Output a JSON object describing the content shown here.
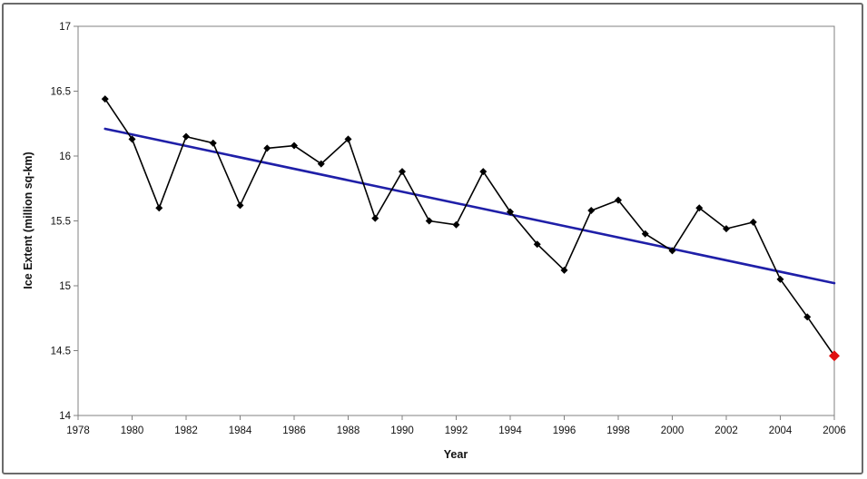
{
  "chart_data": {
    "type": "line",
    "xlabel": "Year",
    "ylabel": "Ice Extent (million sq-km)",
    "xlim": [
      1978,
      2006
    ],
    "ylim": [
      14,
      17
    ],
    "xticks": [
      1978,
      1980,
      1982,
      1984,
      1986,
      1988,
      1990,
      1992,
      1994,
      1996,
      1998,
      2000,
      2002,
      2004,
      2006
    ],
    "yticks": [
      14,
      14.5,
      15,
      15.5,
      16,
      16.5,
      17
    ],
    "grid": false,
    "series": [
      {
        "style": "line-with-markers",
        "color": "#000000",
        "x": [
          1979,
          1980,
          1981,
          1982,
          1983,
          1984,
          1985,
          1986,
          1987,
          1988,
          1989,
          1990,
          1991,
          1992,
          1993,
          1994,
          1995,
          1996,
          1997,
          1998,
          1999,
          2000,
          2001,
          2002,
          2003,
          2004,
          2005
        ],
        "y": [
          16.44,
          16.13,
          15.6,
          16.15,
          16.1,
          15.62,
          16.06,
          16.08,
          15.94,
          16.13,
          15.52,
          15.88,
          15.5,
          15.47,
          15.88,
          15.57,
          15.32,
          15.12,
          15.58,
          15.66,
          15.4,
          15.27,
          15.6,
          15.44,
          15.49,
          15.05,
          14.76
        ]
      },
      {
        "style": "trend",
        "color": "#1f1fa8",
        "x": [
          1979,
          2006
        ],
        "y": [
          16.21,
          15.02
        ]
      },
      {
        "style": "highlight-marker",
        "color": "#e01010",
        "x": [
          2006
        ],
        "y": [
          14.46
        ]
      }
    ]
  }
}
